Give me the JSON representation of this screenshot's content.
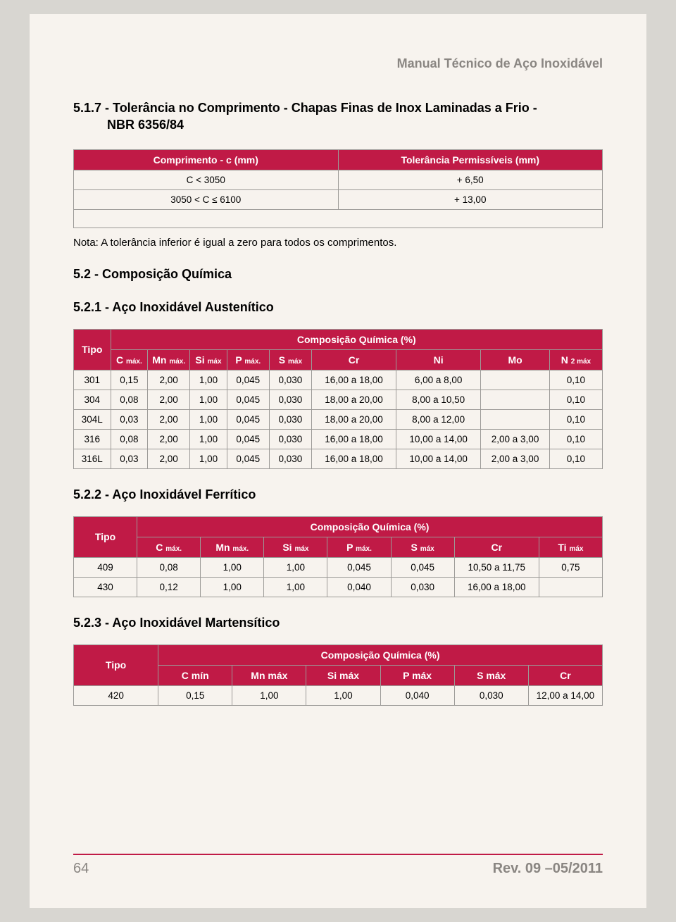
{
  "running_head": "Manual Técnico de Aço Inoxidável",
  "section_517": {
    "num": "5.1.7 - Tolerância no Comprimento - Chapas Finas de Inox Laminadas a Frio -",
    "sub": "NBR 6356/84"
  },
  "table1": {
    "head": [
      "Comprimento - c (mm)",
      "Tolerância Permissíveis (mm)"
    ],
    "rows": [
      [
        "C < 3050",
        "+ 6,50"
      ],
      [
        "3050 < C ≤ 6100",
        "+ 13,00"
      ]
    ]
  },
  "note": "Nota: A tolerância inferior é igual a zero para todos os comprimentos.",
  "section_52": "5.2 - Composição Química",
  "section_521": "5.2.1 - Aço Inoxidável Austenítico",
  "table2": {
    "group": "Composição Química (%)",
    "tipo": "Tipo",
    "cols": [
      "C",
      "Mn",
      "Si",
      "P",
      "S",
      "Cr",
      "Ni",
      "Mo",
      "N"
    ],
    "subs": [
      "máx.",
      "máx.",
      "máx",
      "máx.",
      "máx",
      "",
      "",
      "",
      "2 máx"
    ],
    "rows": [
      [
        "301",
        "0,15",
        "2,00",
        "1,00",
        "0,045",
        "0,030",
        "16,00 a 18,00",
        "6,00 a 8,00",
        "",
        "0,10"
      ],
      [
        "304",
        "0,08",
        "2,00",
        "1,00",
        "0,045",
        "0,030",
        "18,00 a 20,00",
        "8,00 a 10,50",
        "",
        "0,10"
      ],
      [
        "304L",
        "0,03",
        "2,00",
        "1,00",
        "0,045",
        "0,030",
        "18,00 a 20,00",
        "8,00 a 12,00",
        "",
        "0,10"
      ],
      [
        "316",
        "0,08",
        "2,00",
        "1,00",
        "0,045",
        "0,030",
        "16,00 a 18,00",
        "10,00 a 14,00",
        "2,00 a 3,00",
        "0,10"
      ],
      [
        "316L",
        "0,03",
        "2,00",
        "1,00",
        "0,045",
        "0,030",
        "16,00 a 18,00",
        "10,00 a 14,00",
        "2,00 a 3,00",
        "0,10"
      ]
    ]
  },
  "section_522": "5.2.2 - Aço Inoxidável Ferrítico",
  "table3": {
    "group": "Composição Química (%)",
    "tipo": "Tipo",
    "cols": [
      "C",
      "Mn",
      "Si",
      "P",
      "S",
      "Cr",
      "Ti"
    ],
    "subs": [
      "máx.",
      "máx.",
      "máx",
      "máx.",
      "máx",
      "",
      "máx"
    ],
    "rows": [
      [
        "409",
        "0,08",
        "1,00",
        "1,00",
        "0,045",
        "0,045",
        "10,50 a 11,75",
        "0,75"
      ],
      [
        "430",
        "0,12",
        "1,00",
        "1,00",
        "0,040",
        "0,030",
        "16,00 a 18,00",
        ""
      ]
    ]
  },
  "section_523": "5.2.3 - Aço Inoxidável Martensítico",
  "table4": {
    "group": "Composição Química (%)",
    "tipo": "Tipo",
    "cols": [
      "C mín",
      "Mn máx",
      "Si máx",
      "P máx",
      "S máx",
      "Cr"
    ],
    "rows": [
      [
        "420",
        "0,15",
        "1,00",
        "1,00",
        "0,040",
        "0,030",
        "12,00 a 14,00"
      ]
    ]
  },
  "footer": {
    "page": "64",
    "rev": "Rev. 09 –05/2011"
  },
  "colors": {
    "header_bg": "#c01a46",
    "header_fg": "#ffffff",
    "page_bg": "#f7f3ee",
    "body_bg": "#d8d6d1",
    "border": "#9c9a97",
    "muted": "#8a8682"
  }
}
